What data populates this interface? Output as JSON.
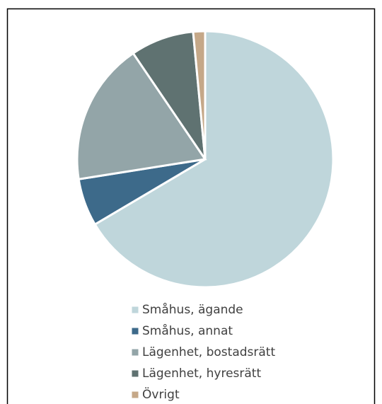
{
  "chart_data": {
    "type": "pie",
    "categories": [
      "Småhus, ägande",
      "Småhus, annat",
      "Lägenhet, bostadsrätt",
      "Lägenhet, hyresrätt",
      "Övrigt"
    ],
    "values": [
      66.5,
      6,
      18,
      8,
      1.5
    ],
    "colors": [
      "#bfd6db",
      "#3d6a8a",
      "#93a5a8",
      "#5f7271",
      "#c5a888"
    ]
  }
}
